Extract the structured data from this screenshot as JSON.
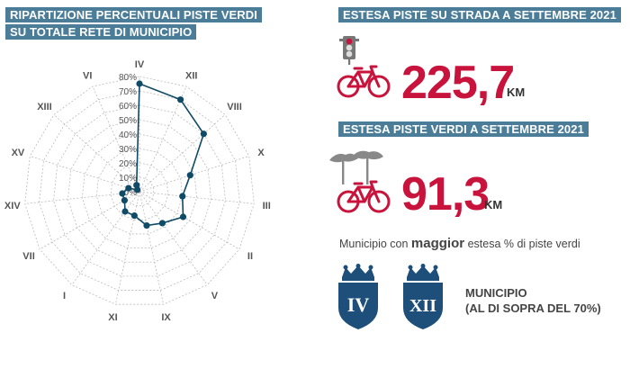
{
  "left_title": {
    "line1": "RIPARTIZIONE PERCENTUALI PISTE VERDI",
    "line2": "SU TOTALE RETE DI MUNICIPIO"
  },
  "road": {
    "title": "ESTESA PISTE SU STRADA A SETTEMBRE 2021",
    "value": "225,7",
    "unit": "KM",
    "icons": [
      "traffic-light-icon",
      "bicycle-icon"
    ]
  },
  "green": {
    "title": "ESTESA PISTE VERDI A SETTEMBRE 2021",
    "value": "91,3",
    "unit": "KM",
    "icons": [
      "pine-trees-icon",
      "bicycle-icon"
    ]
  },
  "major": {
    "prefix": "Municipio con",
    "strong": "maggior",
    "suffix": "estesa % di piste verdi"
  },
  "badges": [
    "IV",
    "XII"
  ],
  "municipio": {
    "label": "MUNICIPIO",
    "note": "(AL DI SOPRA DEL 70%)"
  },
  "colors": {
    "banner": "#4b7d99",
    "accent_red": "#c8143c",
    "series": "#0f4a66",
    "grid": "#bbbbbb",
    "shield": "#1e4e7a",
    "tree": "#888888"
  },
  "chart_data": {
    "type": "radar",
    "categories": [
      "IV",
      "XII",
      "VIII",
      "X",
      "III",
      "II",
      "V",
      "IX",
      "XI",
      "I",
      "VII",
      "XIV",
      "XV",
      "XIII",
      "VI"
    ],
    "series": [
      {
        "values": [
          75,
          70,
          60,
          37,
          30,
          35,
          27,
          24,
          17,
          17,
          12,
          12,
          8,
          2,
          5
        ]
      }
    ],
    "rlim": [
      0,
      80
    ],
    "r_ticks": [
      "0%",
      "10%",
      "20%",
      "30%",
      "40%",
      "50%",
      "60%",
      "70%",
      "80%"
    ],
    "grid": true
  }
}
